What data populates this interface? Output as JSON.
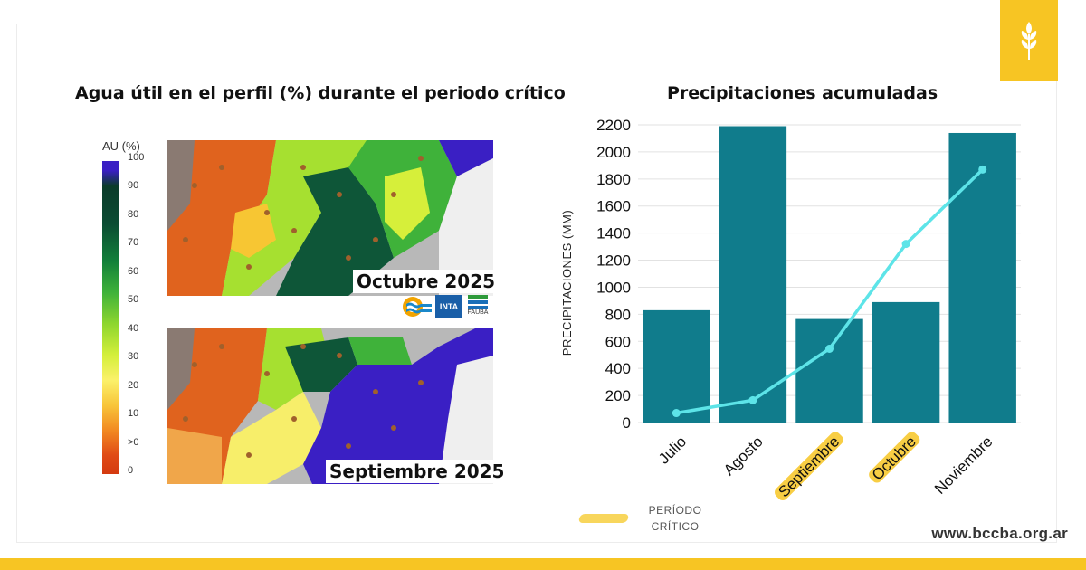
{
  "left_title": "Agua útil en el perfil (%) durante el periodo crítico",
  "right_title": "Precipitaciones acumuladas",
  "site_url": "www.bccba.org.ar",
  "map_legend": {
    "title": "AU (%)",
    "ticks": [
      "100",
      "90",
      "80",
      "70",
      "60",
      "50",
      "40",
      "30",
      "20",
      "10",
      ">0",
      "0"
    ]
  },
  "maps": [
    {
      "label": "Octubre  2025"
    },
    {
      "label": "Septiembre 2025"
    }
  ],
  "logos": {
    "inta": "INTA",
    "fauba": "FAUBA"
  },
  "legend_note": {
    "line1": "PERÍODO",
    "line2": "CRÍTICO"
  },
  "colors": {
    "bar": "#107c8c",
    "line": "#5de4e8",
    "highlight": "#f7c523",
    "accent": "#f7c523"
  },
  "chart_data": {
    "type": "bar",
    "title": "Precipitaciones acumuladas",
    "categories": [
      "Julio",
      "Agosto",
      "Septiembre",
      "Octubre",
      "Noviembre"
    ],
    "highlighted_categories": [
      "Septiembre",
      "Octubre"
    ],
    "ylabel": "PRECIPITACIONES (MM)",
    "xlabel": "",
    "ylim": [
      0,
      2200
    ],
    "yticks": [
      0,
      200,
      400,
      600,
      800,
      1000,
      1200,
      1400,
      1600,
      1800,
      2000,
      2200
    ],
    "grid": true,
    "series": [
      {
        "type": "bar",
        "values": [
          830,
          2190,
          765,
          890,
          2140
        ]
      },
      {
        "type": "line",
        "values": [
          70,
          165,
          545,
          1320,
          1870
        ]
      }
    ]
  }
}
